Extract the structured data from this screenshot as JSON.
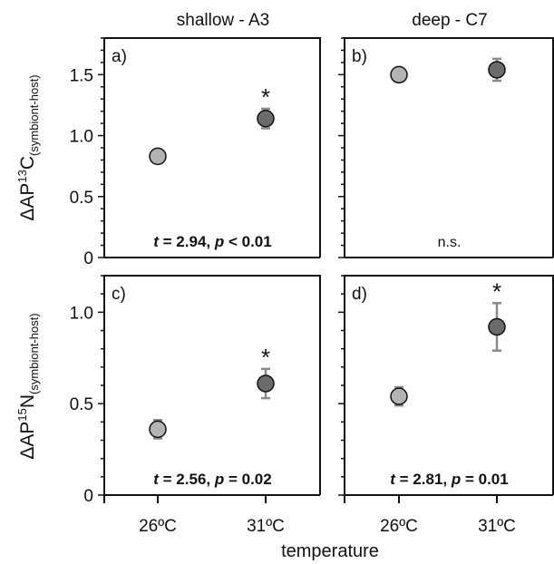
{
  "colors": {
    "point_26C": "#b3b3b3",
    "point_31C": "#6b6b6b",
    "errorbar": "#8a8a8a",
    "axis": "#111111"
  },
  "chart_data": {
    "type": "scatter",
    "column_titles": [
      "shallow - A3",
      "deep - C7"
    ],
    "row_ylabels": [
      {
        "prefix": "ΔAP",
        "sup": "13",
        "element": "C",
        "sub": "(symbiont-host)"
      },
      {
        "prefix": "ΔAP",
        "sup": "15",
        "element": "N",
        "sub": "(symbiont-host)"
      }
    ],
    "xlabel": "temperature",
    "categories": [
      "26ºC",
      "31ºC"
    ],
    "rows": [
      {
        "ylim": [
          0,
          1.8
        ],
        "yticks": [
          "0",
          "0.5",
          "1.0",
          "1.5"
        ],
        "yticks_values": [
          0,
          0.5,
          1.0,
          1.5
        ]
      },
      {
        "ylim": [
          0,
          1.2
        ],
        "yticks": [
          "0",
          "0.5",
          "1.0"
        ],
        "yticks_values": [
          0,
          0.5,
          1.0
        ]
      }
    ],
    "panels": [
      {
        "label": "a)",
        "row": 0,
        "col": 0,
        "points": [
          {
            "x": "26ºC",
            "y": 0.83,
            "err": 0.03
          },
          {
            "x": "31ºC",
            "y": 1.14,
            "err": 0.08
          }
        ],
        "star": "*",
        "stat_text": "t = 2.94, p < 0.01"
      },
      {
        "label": "b)",
        "row": 0,
        "col": 1,
        "points": [
          {
            "x": "26ºC",
            "y": 1.5,
            "err": 0.03
          },
          {
            "x": "31ºC",
            "y": 1.54,
            "err": 0.09
          }
        ],
        "star": "",
        "stat_text": "n.s."
      },
      {
        "label": "c)",
        "row": 1,
        "col": 0,
        "points": [
          {
            "x": "26ºC",
            "y": 0.36,
            "err": 0.05
          },
          {
            "x": "31ºC",
            "y": 0.61,
            "err": 0.08
          }
        ],
        "star": "*",
        "stat_text": "t = 2.56, p = 0.02"
      },
      {
        "label": "d)",
        "row": 1,
        "col": 1,
        "points": [
          {
            "x": "26ºC",
            "y": 0.54,
            "err": 0.05
          },
          {
            "x": "31ºC",
            "y": 0.92,
            "err": 0.13
          }
        ],
        "star": "*",
        "stat_text": "t = 2.81, p = 0.01"
      }
    ]
  }
}
